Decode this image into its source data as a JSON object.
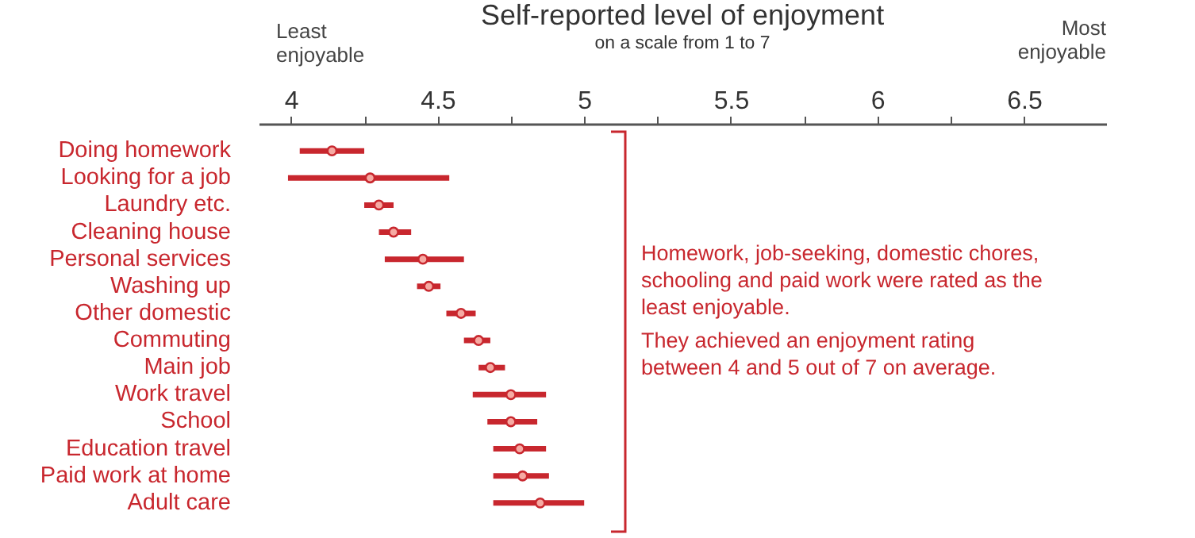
{
  "chart_data": {
    "type": "scatter",
    "title": "Self-reported level of enjoyment",
    "subtitle": "on a scale from 1 to 7",
    "annotations": [
      "Least enjoyable",
      "Most enjoyable",
      "Homework, job-seeking, domestic chores, schooling and paid work were rated as the least enjoyable.",
      "They achieved an enjoyment rating between 4 and 5 out of 7 on average."
    ],
    "categories": [
      "Doing homework",
      "Looking for a job",
      "Laundry etc.",
      "Cleaning house",
      "Personal services",
      "Washing up",
      "Other domestic",
      "Commuting",
      "Main job",
      "Work travel",
      "School",
      "Education travel",
      "Paid work at home",
      "Adult care"
    ],
    "series": [
      {
        "color": "#c8272e",
        "values": [
          4.14,
          4.27,
          4.3,
          4.35,
          4.45,
          4.47,
          4.58,
          4.64,
          4.68,
          4.75,
          4.75,
          4.78,
          4.79,
          4.85
        ],
        "errors": [
          [
            4.03,
            4.25
          ],
          [
            3.99,
            4.54
          ],
          [
            4.25,
            4.35
          ],
          [
            4.3,
            4.41
          ],
          [
            4.32,
            4.59
          ],
          [
            4.43,
            4.51
          ],
          [
            4.53,
            4.63
          ],
          [
            4.59,
            4.68
          ],
          [
            4.64,
            4.73
          ],
          [
            4.62,
            4.87
          ],
          [
            4.67,
            4.84
          ],
          [
            4.69,
            4.87
          ],
          [
            4.69,
            4.88
          ],
          [
            4.69,
            5.0
          ]
        ]
      }
    ],
    "xlim": [
      3.89,
      6.78
    ],
    "xticks": [
      4,
      {
        "value": 4.25,
        "label": null
      },
      4.5,
      {
        "value": 4.75,
        "label": null
      },
      5,
      {
        "value": 5.25,
        "label": null
      },
      5.5,
      {
        "value": 5.75,
        "label": null
      },
      6,
      {
        "value": 6.25,
        "label": null
      },
      6.5
    ],
    "orientation": "horizontal",
    "marker": "circle",
    "grid": false
  }
}
